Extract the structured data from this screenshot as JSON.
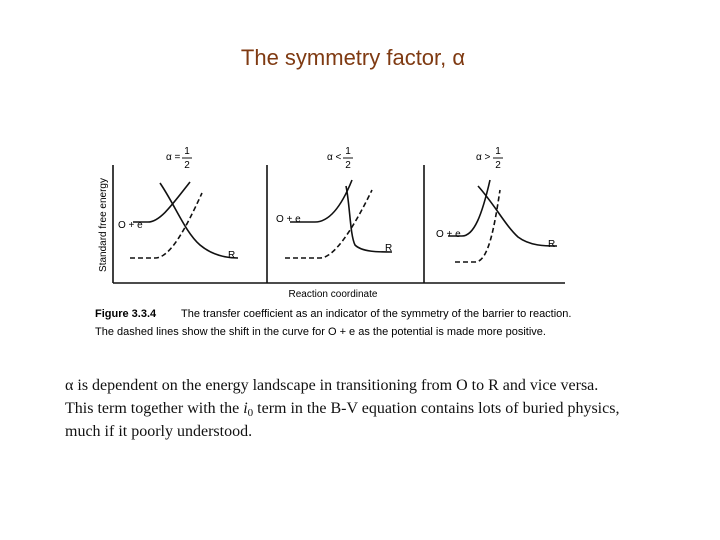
{
  "title": "The symmetry factor, α",
  "figure": {
    "y_axis_label": "Standard free energy",
    "x_axis_label": "Reaction coordinate",
    "panels": [
      {
        "alpha_label": "α =",
        "numerator": "1",
        "denominator": "2",
        "left_label": "O + e",
        "right_label": "R"
      },
      {
        "alpha_label": "α <",
        "numerator": "1",
        "denominator": "2",
        "left_label": "O + e",
        "right_label": "R"
      },
      {
        "alpha_label": "α >",
        "numerator": "1",
        "denominator": "2",
        "left_label": "O + e",
        "right_label": "R"
      }
    ],
    "caption": {
      "number": "Figure 3.3.4",
      "line1": "The transfer coefficient as an indicator of the symmetry of the barrier to reaction.",
      "line2": "The dashed lines show the shift in the curve for O + e as the potential is made more positive."
    }
  },
  "body": {
    "line1": "α is dependent on the energy landscape in transitioning from O to R and vice versa.",
    "line2_before": "This term together with the ",
    "line2_symbol": "i",
    "line2_subscript": "0",
    "line2_after": " term in the B-V equation contains lots of buried physics,",
    "line3": "much if it poorly understood."
  }
}
